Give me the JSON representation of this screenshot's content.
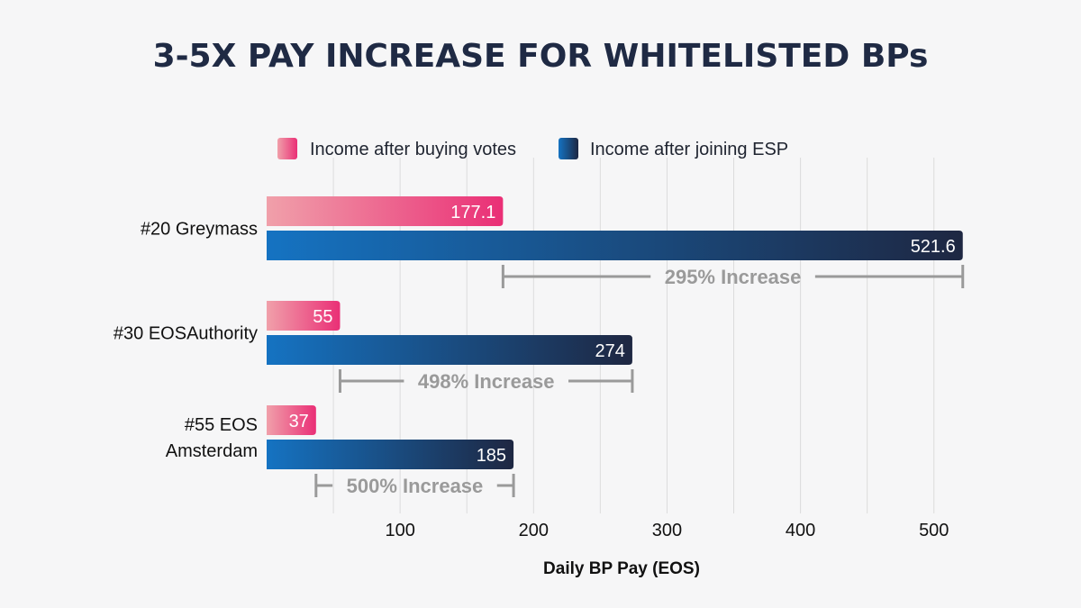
{
  "chart_data": {
    "type": "bar",
    "orientation": "horizontal",
    "title": "3-5X PAY INCREASE FOR WHITELISTED BPs",
    "xlabel": "Daily BP Pay (EOS)",
    "ylabel": "",
    "xlim": [
      0,
      520
    ],
    "xticks": [
      100,
      200,
      300,
      400,
      500
    ],
    "xtick_labels": [
      "100",
      "200",
      "300",
      "400",
      "500"
    ],
    "grid": true,
    "legend_position": "top",
    "categories": [
      {
        "lines": [
          "#20 Greymass"
        ]
      },
      {
        "lines": [
          "#30 EOSAuthority"
        ]
      },
      {
        "lines": [
          "#55 EOS",
          "Amsterdam"
        ]
      }
    ],
    "series": [
      {
        "name": "Income after buying votes",
        "values": [
          177.1,
          55,
          37
        ],
        "labels": [
          "177.1",
          "55",
          "37"
        ]
      },
      {
        "name": "Income after joining ESP",
        "values": [
          521.6,
          274,
          185
        ],
        "labels": [
          "521.6",
          "274",
          "185"
        ]
      }
    ],
    "annotations": [
      "295% Increase",
      "498% Increase",
      "500% Increase"
    ],
    "colors": {
      "pink_start": "#f0a0aa",
      "pink_end": "#ea2f76",
      "blue_start": "#1573c2",
      "blue_end": "#1e2742",
      "bracket": "#9a9a9a",
      "grid": "#dcdcdc",
      "title": "#1f2a44"
    }
  }
}
